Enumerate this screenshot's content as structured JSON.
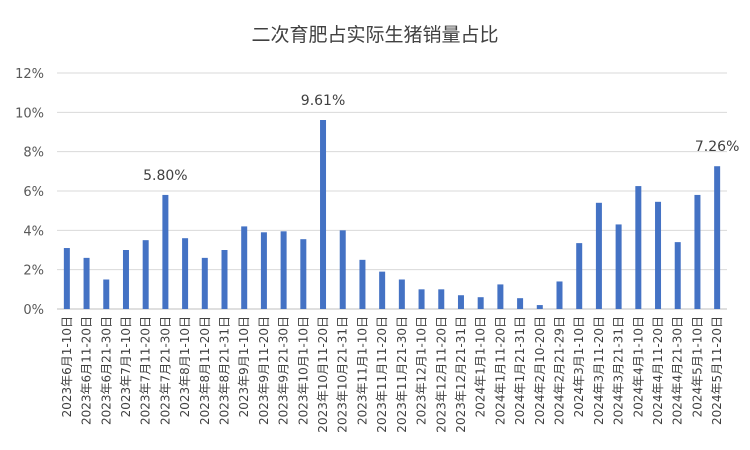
{
  "chart_data": {
    "type": "bar",
    "title": "二次育肥占实际生猪销量占比",
    "xlabel": "",
    "ylabel": "",
    "ylim": [
      0,
      12
    ],
    "yticks": [
      "0%",
      "2%",
      "4%",
      "6%",
      "8%",
      "10%",
      "12%"
    ],
    "grid": true,
    "legend": "none",
    "bar_color": "#4472C4",
    "grid_color": "#D9D9D9",
    "categories": [
      "2023年6月1-10日",
      "2023年6月11-20日",
      "2023年6月21-30日",
      "2023年7月1-10日",
      "2023年7月11-20日",
      "2023年7月21-30日",
      "2023年8月1-10日",
      "2023年8月11-20日",
      "2023年8月21-31日",
      "2023年9月1-10日",
      "2023年9月11-20日",
      "2023年9月21-30日",
      "2023年10月1-10日",
      "2023年10月11-20日",
      "2023年10月21-31日",
      "2023年11月1-10日",
      "2023年11月11-20日",
      "2023年11月21-30日",
      "2023年12月1-10日",
      "2023年12月11-20日",
      "2023年12月21-31日",
      "2024年1月1-10日",
      "2024年1月11-20日",
      "2024年1月21-31日",
      "2024年2月10-20日",
      "2024年2月21-29日",
      "2024年3月1-10日",
      "2024年3月11-20日",
      "2024年3月21-31日",
      "2024年4月1-10日",
      "2024年4月11-20日",
      "2024年4月21-30日",
      "2024年5月1-10日",
      "2024年5月11-20日"
    ],
    "values": [
      3.1,
      2.6,
      1.5,
      3.0,
      3.5,
      5.8,
      3.6,
      2.6,
      3.0,
      4.2,
      3.9,
      3.95,
      3.55,
      9.61,
      4.0,
      2.5,
      1.9,
      1.5,
      1.0,
      1.0,
      0.7,
      0.6,
      1.25,
      0.55,
      0.2,
      1.4,
      3.35,
      5.4,
      4.3,
      6.25,
      5.45,
      3.4,
      5.8,
      7.26
    ],
    "annotations": [
      {
        "index": 5,
        "text": "5.80%"
      },
      {
        "index": 13,
        "text": "9.61%"
      },
      {
        "index": 33,
        "text": "7.26%"
      }
    ]
  }
}
